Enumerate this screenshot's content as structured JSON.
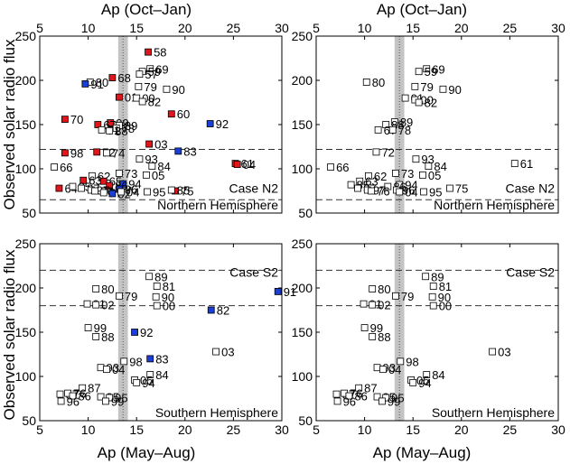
{
  "figure": {
    "top_axis_label": "Ap (Oct–Jan)",
    "bottom_axis_label": "Ap (May–Aug)",
    "ylabel": "Observed solar radio flux"
  },
  "colors": {
    "red": "#e0161b",
    "blue": "#1a3fd6",
    "open": "#ffffff",
    "band": "#c4c4c4",
    "dashed": "#333333"
  },
  "chart_data": [
    {
      "type": "scatter",
      "panel": "top-left",
      "xlim": [
        5,
        30
      ],
      "ylim": [
        50,
        250
      ],
      "xticks": [
        "5",
        "10",
        "15",
        "20",
        "25",
        "30"
      ],
      "yticks": [
        "50",
        "100",
        "150",
        "200",
        "250"
      ],
      "case_label": "Case N2",
      "hemisphere_label": "Northern Hemisphere",
      "dashed_lines": [
        122,
        65
      ],
      "band": [
        13.1,
        14.1
      ],
      "points": [
        {
          "x": 16.2,
          "y": 232,
          "label": "58",
          "fill": "red"
        },
        {
          "x": 16.4,
          "y": 213,
          "label": "69",
          "fill": "open"
        },
        {
          "x": 15.6,
          "y": 210,
          "label": "59",
          "fill": "open"
        },
        {
          "x": 15.3,
          "y": 207,
          "label": "57",
          "fill": "open"
        },
        {
          "x": 12.5,
          "y": 203,
          "label": "68",
          "fill": "red"
        },
        {
          "x": 10.2,
          "y": 198,
          "label": "80",
          "fill": "open"
        },
        {
          "x": 9.7,
          "y": 196,
          "label": "91",
          "fill": "blue"
        },
        {
          "x": 15.2,
          "y": 193,
          "label": "79",
          "fill": "open"
        },
        {
          "x": 18.1,
          "y": 190,
          "label": "90",
          "fill": "open"
        },
        {
          "x": 13.2,
          "y": 181,
          "label": "01",
          "fill": "red"
        },
        {
          "x": 15.0,
          "y": 180,
          "label": "00",
          "fill": "open"
        },
        {
          "x": 15.6,
          "y": 176,
          "label": "82",
          "fill": "open"
        },
        {
          "x": 18.6,
          "y": 162,
          "label": "60",
          "fill": "red"
        },
        {
          "x": 7.6,
          "y": 156,
          "label": "70",
          "fill": "red"
        },
        {
          "x": 22.6,
          "y": 151,
          "label": "92",
          "fill": "blue"
        },
        {
          "x": 12.3,
          "y": 152,
          "label": "99",
          "fill": "red"
        },
        {
          "x": 11.0,
          "y": 150,
          "label": "67",
          "fill": "red"
        },
        {
          "x": 13.2,
          "y": 149,
          "label": "89",
          "fill": "open"
        },
        {
          "x": 12.9,
          "y": 146,
          "label": "78",
          "fill": "open"
        },
        {
          "x": 11.4,
          "y": 144,
          "label": "71",
          "fill": "open"
        },
        {
          "x": 12.2,
          "y": 143,
          "label": "88",
          "fill": "open"
        },
        {
          "x": 16.3,
          "y": 128,
          "label": "03",
          "fill": "red"
        },
        {
          "x": 7.6,
          "y": 118,
          "label": "98",
          "fill": "red"
        },
        {
          "x": 10.9,
          "y": 119,
          "label": "72",
          "fill": "red"
        },
        {
          "x": 11.9,
          "y": 118,
          "label": "74",
          "fill": "open"
        },
        {
          "x": 19.3,
          "y": 120,
          "label": "83",
          "fill": "blue"
        },
        {
          "x": 15.3,
          "y": 111,
          "label": "93",
          "fill": "open"
        },
        {
          "x": 25.2,
          "y": 106,
          "label": "61",
          "fill": "red"
        },
        {
          "x": 25.4,
          "y": 105,
          "label": "04",
          "fill": "red"
        },
        {
          "x": 6.5,
          "y": 102,
          "label": "66",
          "fill": "open"
        },
        {
          "x": 16.6,
          "y": 103,
          "label": "84",
          "fill": "open"
        },
        {
          "x": 13.2,
          "y": 95,
          "label": "73",
          "fill": "open"
        },
        {
          "x": 16.0,
          "y": 93,
          "label": "05",
          "fill": "open"
        },
        {
          "x": 10.4,
          "y": 92,
          "label": "62",
          "fill": "open"
        },
        {
          "x": 9.5,
          "y": 87,
          "label": "63",
          "fill": "red"
        },
        {
          "x": 11.6,
          "y": 86,
          "label": "65",
          "fill": "red"
        },
        {
          "x": 13.6,
          "y": 83,
          "label": "94",
          "fill": "blue"
        },
        {
          "x": 12.2,
          "y": 81,
          "label": "86",
          "fill": "red"
        },
        {
          "x": 7.0,
          "y": 78,
          "label": "64",
          "fill": "red"
        },
        {
          "x": 8.4,
          "y": 80,
          "label": "85",
          "fill": "open"
        },
        {
          "x": 9.3,
          "y": 78,
          "label": "87",
          "fill": "open"
        },
        {
          "x": 13.2,
          "y": 77,
          "label": "96",
          "fill": "blue"
        },
        {
          "x": 10.3,
          "y": 76,
          "label": "97",
          "fill": "open"
        },
        {
          "x": 10.7,
          "y": 75,
          "label": "76",
          "fill": "open"
        },
        {
          "x": 11.6,
          "y": 73,
          "label": "77",
          "fill": "open"
        },
        {
          "x": 12.5,
          "y": 72,
          "label": "02",
          "fill": "blue"
        },
        {
          "x": 13.4,
          "y": 74,
          "label": "04",
          "fill": "open"
        },
        {
          "x": 16.1,
          "y": 74,
          "label": "95",
          "fill": "open"
        },
        {
          "x": 19.0,
          "y": 75,
          "label": "75",
          "fill": "red"
        },
        {
          "x": 18.6,
          "y": 76,
          "label": "85",
          "fill": "open"
        }
      ]
    },
    {
      "type": "scatter",
      "panel": "top-right",
      "xlim": [
        5,
        30
      ],
      "ylim": [
        50,
        250
      ],
      "xticks": [
        "5",
        "10",
        "15",
        "20",
        "25",
        "30"
      ],
      "yticks": [
        "50",
        "100",
        "150",
        "200",
        "250"
      ],
      "case_label": "Case N2",
      "hemisphere_label": "Northern Hemisphere",
      "dashed_lines": [
        122,
        65
      ],
      "band": [
        13.1,
        14.1
      ],
      "points": [
        {
          "x": 16.4,
          "y": 213,
          "label": "69",
          "fill": "open"
        },
        {
          "x": 15.6,
          "y": 210,
          "label": "59",
          "fill": "open"
        },
        {
          "x": 10.2,
          "y": 198,
          "label": "80",
          "fill": "open"
        },
        {
          "x": 15.2,
          "y": 193,
          "label": "79",
          "fill": "open"
        },
        {
          "x": 18.1,
          "y": 190,
          "label": "90",
          "fill": "open"
        },
        {
          "x": 14.2,
          "y": 180,
          "label": "01",
          "fill": "open"
        },
        {
          "x": 15.2,
          "y": 178,
          "label": "00",
          "fill": "open"
        },
        {
          "x": 15.6,
          "y": 175,
          "label": "82",
          "fill": "open"
        },
        {
          "x": 13.1,
          "y": 153,
          "label": "89",
          "fill": "open"
        },
        {
          "x": 12.2,
          "y": 150,
          "label": "88",
          "fill": "open"
        },
        {
          "x": 11.4,
          "y": 144,
          "label": "67",
          "fill": "open"
        },
        {
          "x": 12.9,
          "y": 144,
          "label": "78",
          "fill": "open"
        },
        {
          "x": 11.2,
          "y": 119,
          "label": "72",
          "fill": "open"
        },
        {
          "x": 15.3,
          "y": 111,
          "label": "93",
          "fill": "open"
        },
        {
          "x": 25.5,
          "y": 106,
          "label": "61",
          "fill": "open"
        },
        {
          "x": 6.5,
          "y": 102,
          "label": "66",
          "fill": "open"
        },
        {
          "x": 16.6,
          "y": 103,
          "label": "84",
          "fill": "open"
        },
        {
          "x": 13.2,
          "y": 95,
          "label": "73",
          "fill": "open"
        },
        {
          "x": 16.0,
          "y": 93,
          "label": "05",
          "fill": "open"
        },
        {
          "x": 10.4,
          "y": 92,
          "label": "62",
          "fill": "open"
        },
        {
          "x": 9.5,
          "y": 86,
          "label": "63",
          "fill": "open"
        },
        {
          "x": 8.6,
          "y": 82,
          "label": "85",
          "fill": "open"
        },
        {
          "x": 13.6,
          "y": 82,
          "label": "94",
          "fill": "open"
        },
        {
          "x": 9.3,
          "y": 78,
          "label": "87",
          "fill": "open"
        },
        {
          "x": 12.4,
          "y": 80,
          "label": "86",
          "fill": "open"
        },
        {
          "x": 10.3,
          "y": 76,
          "label": "97",
          "fill": "open"
        },
        {
          "x": 10.7,
          "y": 75,
          "label": "76",
          "fill": "open"
        },
        {
          "x": 13.3,
          "y": 76,
          "label": "96",
          "fill": "open"
        },
        {
          "x": 13.6,
          "y": 74,
          "label": "04",
          "fill": "open"
        },
        {
          "x": 16.1,
          "y": 74,
          "label": "95",
          "fill": "open"
        },
        {
          "x": 18.8,
          "y": 78,
          "label": "75",
          "fill": "open"
        }
      ]
    },
    {
      "type": "scatter",
      "panel": "bottom-left",
      "xlim": [
        5,
        30
      ],
      "ylim": [
        50,
        250
      ],
      "xticks": [
        "5",
        "10",
        "15",
        "20",
        "25",
        "30"
      ],
      "yticks": [
        "50",
        "100",
        "150",
        "200",
        "250"
      ],
      "case_label": "Case S2",
      "hemisphere_label": "Southern Hemisphere",
      "dashed_lines": [
        220,
        180
      ],
      "band": [
        13.1,
        14.1
      ],
      "points": [
        {
          "x": 16.3,
          "y": 213,
          "label": "89",
          "fill": "open"
        },
        {
          "x": 17.1,
          "y": 202,
          "label": "81",
          "fill": "open"
        },
        {
          "x": 10.8,
          "y": 199,
          "label": "80",
          "fill": "open"
        },
        {
          "x": 29.6,
          "y": 196,
          "label": "91",
          "fill": "blue"
        },
        {
          "x": 13.2,
          "y": 191,
          "label": "79",
          "fill": "open"
        },
        {
          "x": 17.0,
          "y": 190,
          "label": "90",
          "fill": "open"
        },
        {
          "x": 9.9,
          "y": 182,
          "label": "01",
          "fill": "open"
        },
        {
          "x": 10.8,
          "y": 181,
          "label": "02",
          "fill": "open"
        },
        {
          "x": 17.1,
          "y": 180,
          "label": "00",
          "fill": "open"
        },
        {
          "x": 22.7,
          "y": 175,
          "label": "82",
          "fill": "blue"
        },
        {
          "x": 10.0,
          "y": 155,
          "label": "99",
          "fill": "open"
        },
        {
          "x": 14.8,
          "y": 150,
          "label": "92",
          "fill": "blue"
        },
        {
          "x": 10.8,
          "y": 145,
          "label": "88",
          "fill": "open"
        },
        {
          "x": 23.2,
          "y": 128,
          "label": "03",
          "fill": "open"
        },
        {
          "x": 16.4,
          "y": 120,
          "label": "83",
          "fill": "blue"
        },
        {
          "x": 13.7,
          "y": 117,
          "label": "98",
          "fill": "open"
        },
        {
          "x": 11.3,
          "y": 110,
          "label": "93",
          "fill": "open"
        },
        {
          "x": 11.9,
          "y": 108,
          "label": "04",
          "fill": "open"
        },
        {
          "x": 16.4,
          "y": 102,
          "label": "84",
          "fill": "open"
        },
        {
          "x": 14.8,
          "y": 96,
          "label": "05",
          "fill": "open"
        },
        {
          "x": 15.0,
          "y": 93,
          "label": "94",
          "fill": "open"
        },
        {
          "x": 9.4,
          "y": 87,
          "label": "87",
          "fill": "open"
        },
        {
          "x": 7.1,
          "y": 80,
          "label": "97",
          "fill": "open"
        },
        {
          "x": 7.9,
          "y": 81,
          "label": "76",
          "fill": "open"
        },
        {
          "x": 8.4,
          "y": 78,
          "label": "86",
          "fill": "open"
        },
        {
          "x": 11.3,
          "y": 77,
          "label": "85",
          "fill": "open"
        },
        {
          "x": 12.2,
          "y": 76,
          "label": "95",
          "fill": "open"
        },
        {
          "x": 7.2,
          "y": 72,
          "label": "96",
          "fill": "open"
        },
        {
          "x": 11.8,
          "y": 72,
          "label": "99",
          "fill": "open"
        }
      ]
    },
    {
      "type": "scatter",
      "panel": "bottom-right",
      "xlim": [
        5,
        30
      ],
      "ylim": [
        50,
        250
      ],
      "xticks": [
        "5",
        "10",
        "15",
        "20",
        "25",
        "30"
      ],
      "yticks": [
        "50",
        "100",
        "150",
        "200",
        "250"
      ],
      "case_label": "Case S2",
      "hemisphere_label": "Southern Hemisphere",
      "dashed_lines": [
        220,
        180
      ],
      "band": [
        13.1,
        14.1
      ],
      "points": [
        {
          "x": 16.3,
          "y": 213,
          "label": "89",
          "fill": "open"
        },
        {
          "x": 17.1,
          "y": 202,
          "label": "81",
          "fill": "open"
        },
        {
          "x": 10.8,
          "y": 199,
          "label": "80",
          "fill": "open"
        },
        {
          "x": 13.2,
          "y": 191,
          "label": "79",
          "fill": "open"
        },
        {
          "x": 17.0,
          "y": 190,
          "label": "90",
          "fill": "open"
        },
        {
          "x": 9.9,
          "y": 182,
          "label": "01",
          "fill": "open"
        },
        {
          "x": 10.8,
          "y": 181,
          "label": "02",
          "fill": "open"
        },
        {
          "x": 17.1,
          "y": 180,
          "label": "00",
          "fill": "open"
        },
        {
          "x": 10.0,
          "y": 155,
          "label": "99",
          "fill": "open"
        },
        {
          "x": 10.8,
          "y": 145,
          "label": "88",
          "fill": "open"
        },
        {
          "x": 23.2,
          "y": 128,
          "label": "03",
          "fill": "open"
        },
        {
          "x": 13.7,
          "y": 117,
          "label": "98",
          "fill": "open"
        },
        {
          "x": 11.3,
          "y": 110,
          "label": "93",
          "fill": "open"
        },
        {
          "x": 11.9,
          "y": 108,
          "label": "04",
          "fill": "open"
        },
        {
          "x": 16.4,
          "y": 102,
          "label": "84",
          "fill": "open"
        },
        {
          "x": 14.8,
          "y": 96,
          "label": "05",
          "fill": "open"
        },
        {
          "x": 15.0,
          "y": 93,
          "label": "94",
          "fill": "open"
        },
        {
          "x": 9.4,
          "y": 87,
          "label": "87",
          "fill": "open"
        },
        {
          "x": 7.1,
          "y": 80,
          "label": "97",
          "fill": "open"
        },
        {
          "x": 7.9,
          "y": 81,
          "label": "76",
          "fill": "open"
        },
        {
          "x": 8.4,
          "y": 78,
          "label": "86",
          "fill": "open"
        },
        {
          "x": 11.3,
          "y": 77,
          "label": "85",
          "fill": "open"
        },
        {
          "x": 12.2,
          "y": 76,
          "label": "95",
          "fill": "open"
        },
        {
          "x": 7.2,
          "y": 72,
          "label": "96",
          "fill": "open"
        },
        {
          "x": 11.8,
          "y": 72,
          "label": "99",
          "fill": "open"
        }
      ]
    }
  ]
}
